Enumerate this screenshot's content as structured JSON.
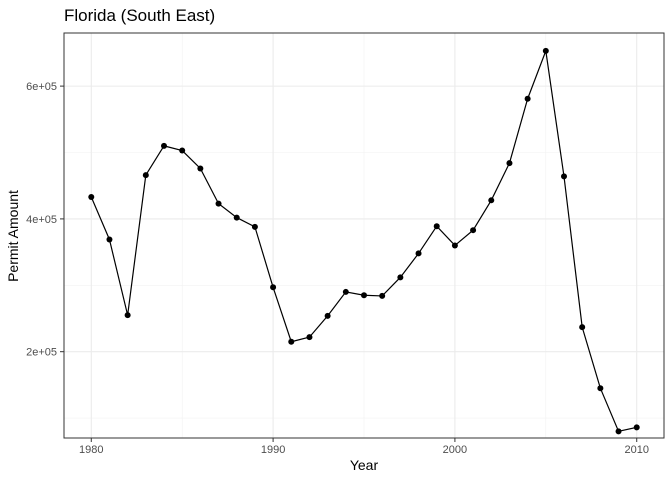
{
  "chart_data": {
    "type": "line",
    "title": "Florida (South East)",
    "xlabel": "Year",
    "ylabel": "Permit Amount",
    "xlim": [
      1978.5,
      2011.5
    ],
    "ylim": [
      70000,
      680000
    ],
    "x_ticks": [
      1980,
      1990,
      2000,
      2010
    ],
    "x_tick_labels": [
      "1980",
      "1990",
      "2000",
      "2010"
    ],
    "x_minor_ticks": [
      1985,
      1995,
      2005
    ],
    "y_ticks": [
      200000,
      400000,
      600000
    ],
    "y_tick_labels": [
      "2e+05",
      "4e+05",
      "6e+05"
    ],
    "y_minor_ticks": [
      100000,
      300000,
      500000
    ],
    "grid": true,
    "series": [
      {
        "x": [
          1980,
          1981,
          1982,
          1983,
          1984,
          1985,
          1986,
          1987,
          1988,
          1989,
          1990,
          1991,
          1992,
          1993,
          1994,
          1995,
          1996,
          1997,
          1998,
          1999,
          2000,
          2001,
          2002,
          2003,
          2004,
          2005,
          2006,
          2007,
          2008,
          2009,
          2010
        ],
        "values": [
          433000,
          369000,
          255000,
          466000,
          510000,
          503000,
          476000,
          423000,
          402000,
          388000,
          297000,
          215000,
          222000,
          254000,
          290000,
          285000,
          284000,
          312000,
          348000,
          389000,
          360000,
          383000,
          428000,
          484000,
          581000,
          653000,
          464000,
          237000,
          145000,
          80000,
          86000
        ]
      }
    ]
  }
}
